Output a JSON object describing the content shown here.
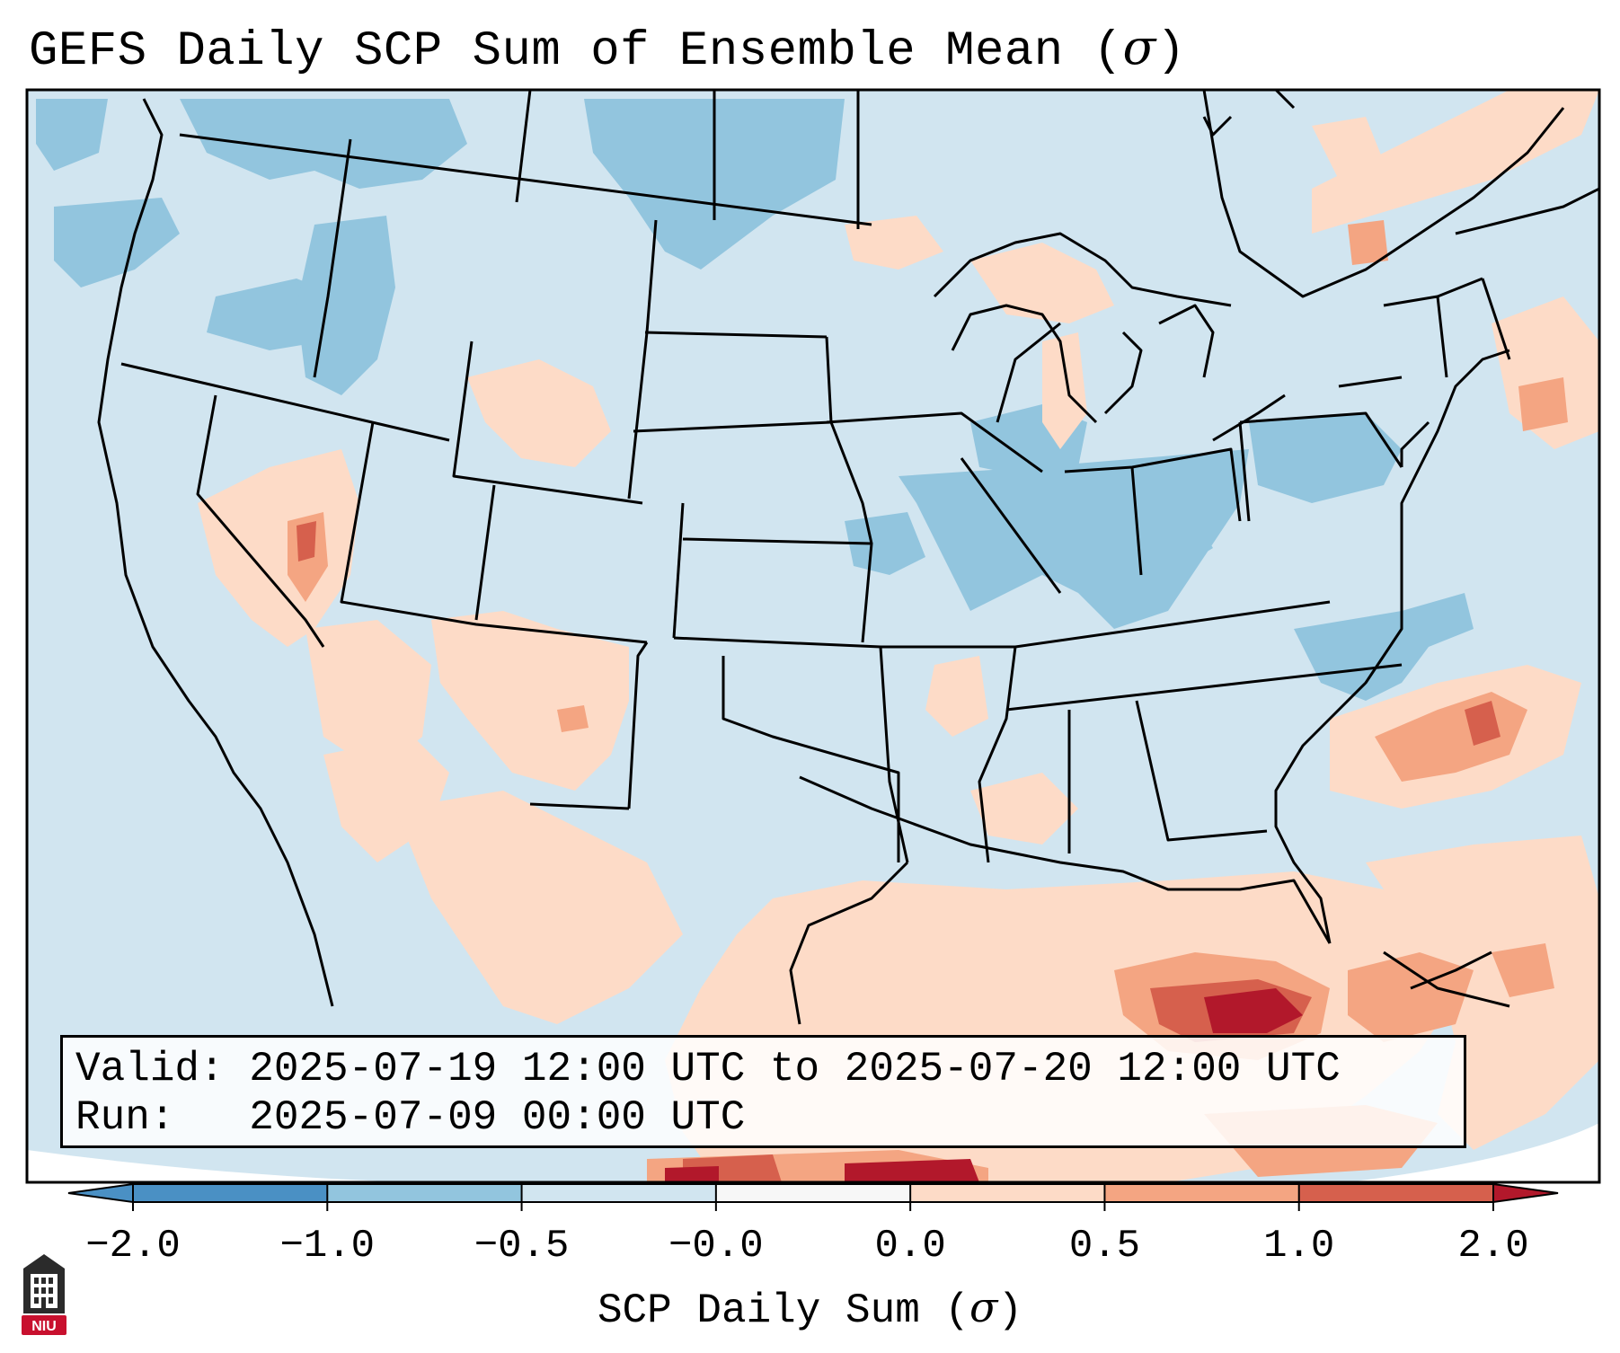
{
  "title": {
    "text": "GEFS Daily SCP Sum of Ensemble Mean (",
    "sigma": "σ",
    "close": ")"
  },
  "info": {
    "valid_line": "Valid: 2025-07-19 12:00 UTC to 2025-07-20 12:00 UTC",
    "run_line": "Run:   2025-07-09 00:00 UTC"
  },
  "colorbar": {
    "label_text": "SCP Daily Sum (",
    "label_sigma": "σ",
    "label_close": ")",
    "ticks": [
      "−2.0",
      "−1.0",
      "−0.5",
      "−0.0",
      "0.0",
      "0.5",
      "1.0",
      "2.0"
    ],
    "colors": [
      "#4a90c4",
      "#92c5de",
      "#d1e5f0",
      "#f7f7f7",
      "#fddbc7",
      "#f4a582",
      "#d6604d",
      "#b2182b"
    ]
  },
  "logo": {
    "text": "NIU",
    "color": "#c8102e"
  },
  "map": {
    "background": "#d1e5f0",
    "outside": "#ffffff"
  }
}
